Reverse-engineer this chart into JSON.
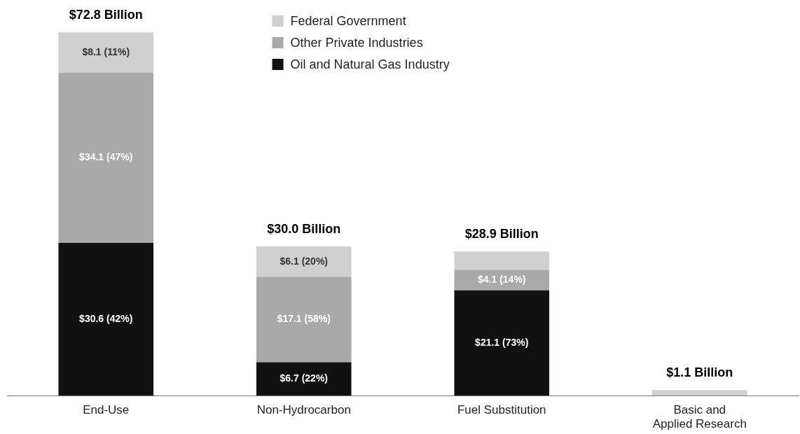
{
  "chart_data": {
    "type": "bar",
    "stacked": true,
    "categories": [
      "End-Use",
      "Non-Hydrocarbon",
      "Fuel Substitution",
      "Basic and Applied Research"
    ],
    "series": [
      {
        "name": "Oil and Natural Gas Industry",
        "color": "#111111",
        "values": [
          30.6,
          6.7,
          21.1,
          null
        ],
        "value_labels": [
          "$30.6 (42%)",
          "$6.7 (22%)",
          "$21.1 (73%)",
          null
        ]
      },
      {
        "name": "Other Private Industries",
        "color": "#a9a9a9",
        "values": [
          34.1,
          17.1,
          4.1,
          null
        ],
        "value_labels": [
          "$34.1 (47%)",
          "$17.1 (58%)",
          "$4.1 (14%)",
          null
        ]
      },
      {
        "name": "Federal Government",
        "color": "#cfcfcf",
        "values": [
          8.1,
          6.1,
          3.7,
          1.1
        ],
        "value_labels": [
          "$8.1 (11%)",
          "$6.1 (20%)",
          null,
          null
        ]
      }
    ],
    "totals": [
      "$72.8 Billion",
      "$30.0 Billion",
      "$28.9 Billion",
      "$1.1 Billion"
    ],
    "legend": "top",
    "grid": false
  }
}
